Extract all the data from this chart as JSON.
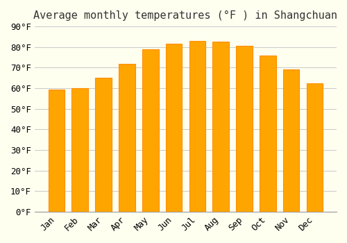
{
  "title": "Average monthly temperatures (°F ) in Shangchuan",
  "months": [
    "Jan",
    "Feb",
    "Mar",
    "Apr",
    "May",
    "Jun",
    "Jul",
    "Aug",
    "Sep",
    "Oct",
    "Nov",
    "Dec"
  ],
  "values": [
    59.5,
    60.0,
    65.0,
    72.0,
    79.0,
    81.5,
    83.0,
    82.5,
    80.5,
    76.0,
    69.0,
    62.5
  ],
  "bar_color": "#FFA500",
  "bar_edge_color": "#FF8C00",
  "background_color": "#FFFFF0",
  "grid_color": "#CCCCCC",
  "ylim": [
    0,
    90
  ],
  "yticks": [
    0,
    10,
    20,
    30,
    40,
    50,
    60,
    70,
    80,
    90
  ],
  "title_fontsize": 11,
  "tick_fontsize": 9,
  "font_family": "monospace"
}
